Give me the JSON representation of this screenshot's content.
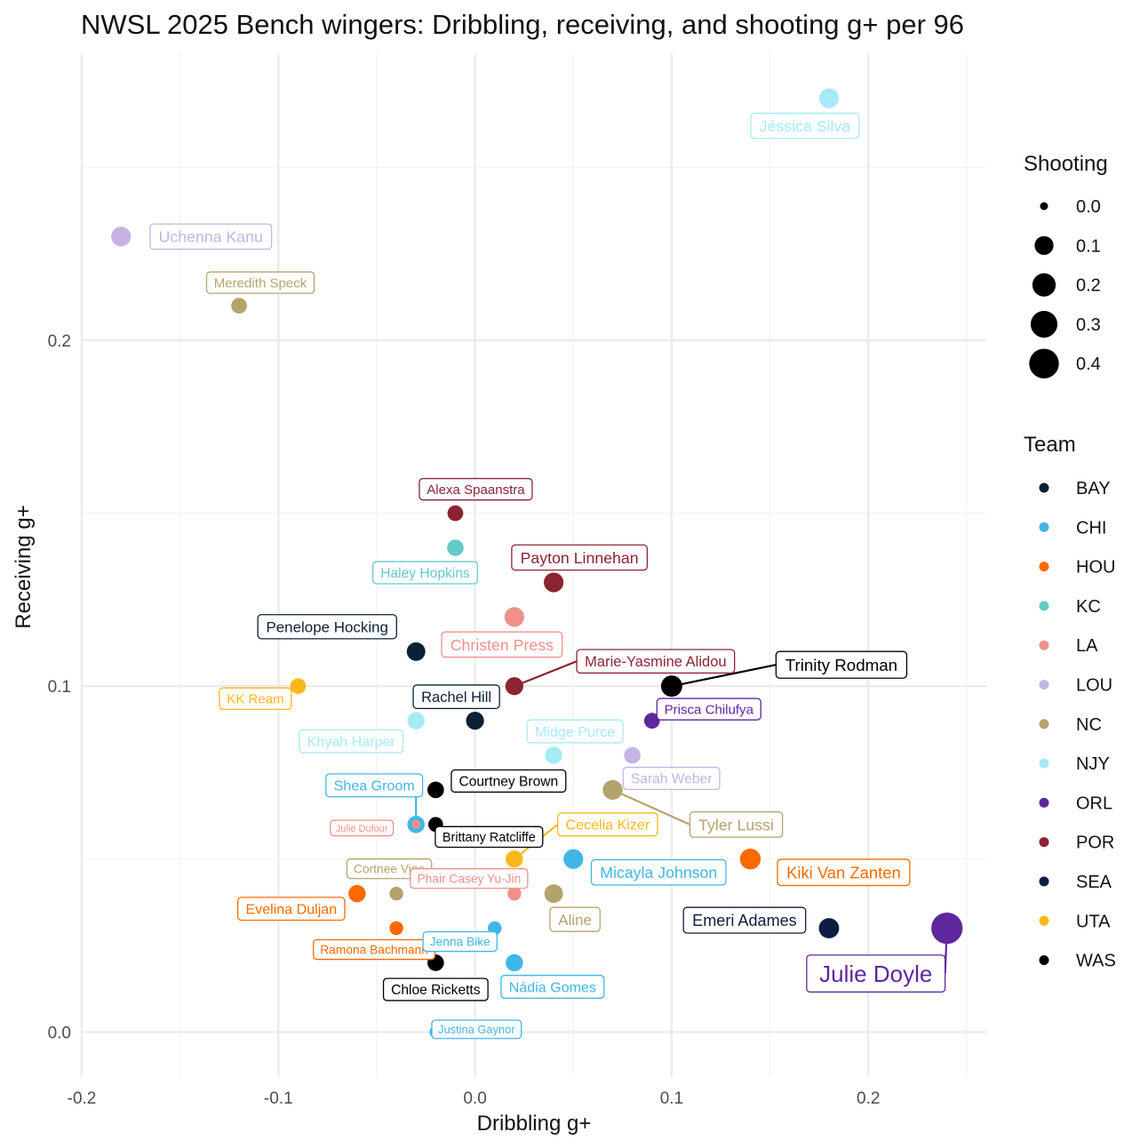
{
  "chart_data": {
    "type": "scatter",
    "title": "NWSL 2025 Bench wingers: Dribbling, receiving, and shooting g+ per 96",
    "xlabel": "Dribbling g+",
    "ylabel": "Receiving g+",
    "xlim": [
      -0.2,
      0.26
    ],
    "ylim": [
      -0.013,
      0.283
    ],
    "x_ticks": [
      -0.2,
      -0.1,
      0.0,
      0.1,
      0.2
    ],
    "x_tick_labels": [
      "-0.2",
      "-0.1",
      "0.0",
      "0.1",
      "0.2"
    ],
    "y_ticks": [
      0.0,
      0.1,
      0.2
    ],
    "y_tick_labels": [
      "0.0",
      "0.1",
      "0.2"
    ],
    "grid": true,
    "legend_position": "right",
    "size_legend": {
      "title": "Shooting",
      "values": [
        0.0,
        0.1,
        0.2,
        0.3,
        0.4
      ],
      "labels": [
        "0.0",
        "0.1",
        "0.2",
        "0.3",
        "0.4"
      ]
    },
    "color_legend": {
      "title": "Team",
      "teams": [
        "BAY",
        "CHI",
        "HOU",
        "KC",
        "LA",
        "LOU",
        "NC",
        "NJY",
        "ORL",
        "POR",
        "SEA",
        "UTA",
        "WAS"
      ]
    },
    "team_colors": {
      "BAY": "#0c2135",
      "CHI": "#41b6e6",
      "HOU": "#ff6900",
      "KC": "#62cbc9",
      "LA": "#f09089",
      "LOU": "#c5b4e3",
      "NC": "#b5a36e",
      "NJY": "#a6eaf5",
      "ORL": "#60269e",
      "POR": "#8b2332",
      "SEA": "#0e1d41",
      "UTA": "#fdb71a",
      "WAS": "#000000"
    },
    "points": [
      {
        "name": "Jéssica Silva",
        "team": "NJY",
        "dribbling": 0.18,
        "receiving": 0.27,
        "shooting": 0.1
      },
      {
        "name": "Uchenna Kanu",
        "team": "LOU",
        "dribbling": -0.18,
        "receiving": 0.23,
        "shooting": 0.1
      },
      {
        "name": "Meredith Speck",
        "team": "NC",
        "dribbling": -0.12,
        "receiving": 0.21,
        "shooting": 0.04
      },
      {
        "name": "Alexa Spaanstra",
        "team": "POR",
        "dribbling": -0.01,
        "receiving": 0.15,
        "shooting": 0.04
      },
      {
        "name": "Haley Hopkins",
        "team": "KC",
        "dribbling": -0.01,
        "receiving": 0.14,
        "shooting": 0.05
      },
      {
        "name": "Payton Linnehan",
        "team": "POR",
        "dribbling": 0.04,
        "receiving": 0.13,
        "shooting": 0.1
      },
      {
        "name": "Christen Press",
        "team": "LA",
        "dribbling": 0.02,
        "receiving": 0.12,
        "shooting": 0.1
      },
      {
        "name": "Penelope Hocking",
        "team": "BAY",
        "dribbling": -0.03,
        "receiving": 0.11,
        "shooting": 0.08
      },
      {
        "name": "Marie-Yasmine Alidou",
        "team": "POR",
        "dribbling": 0.02,
        "receiving": 0.1,
        "shooting": 0.07
      },
      {
        "name": "Trinity Rodman",
        "team": "WAS",
        "dribbling": 0.1,
        "receiving": 0.1,
        "shooting": 0.13
      },
      {
        "name": "KK Ream",
        "team": "UTA",
        "dribbling": -0.09,
        "receiving": 0.1,
        "shooting": 0.04
      },
      {
        "name": "Rachel Hill",
        "team": "BAY",
        "dribbling": 0.0,
        "receiving": 0.09,
        "shooting": 0.07
      },
      {
        "name": "Prisca Chilufya",
        "team": "ORL",
        "dribbling": 0.09,
        "receiving": 0.09,
        "shooting": 0.04
      },
      {
        "name": "Khyah Harper",
        "team": "NJY",
        "dribbling": -0.03,
        "receiving": 0.09,
        "shooting": 0.06
      },
      {
        "name": "Midge Purce",
        "team": "NJY",
        "dribbling": 0.04,
        "receiving": 0.08,
        "shooting": 0.06
      },
      {
        "name": "Sarah Weber",
        "team": "LOU",
        "dribbling": 0.08,
        "receiving": 0.08,
        "shooting": 0.05
      },
      {
        "name": "Courtney Brown",
        "team": "WAS",
        "dribbling": -0.02,
        "receiving": 0.07,
        "shooting": 0.05
      },
      {
        "name": "Tyler Lussi",
        "team": "NC",
        "dribbling": 0.07,
        "receiving": 0.07,
        "shooting": 0.1
      },
      {
        "name": "Shea Groom",
        "team": "CHI",
        "dribbling": -0.03,
        "receiving": 0.06,
        "shooting": 0.06
      },
      {
        "name": "Brittany Ratcliffe",
        "team": "WAS",
        "dribbling": -0.02,
        "receiving": 0.06,
        "shooting": 0.03
      },
      {
        "name": "Julie Dufour",
        "team": "LA",
        "dribbling": -0.03,
        "receiving": 0.06,
        "shooting": 0.0
      },
      {
        "name": "Cecelia Kizer",
        "team": "UTA",
        "dribbling": 0.02,
        "receiving": 0.05,
        "shooting": 0.06
      },
      {
        "name": "Micayla Johnson",
        "team": "CHI",
        "dribbling": 0.05,
        "receiving": 0.05,
        "shooting": 0.1
      },
      {
        "name": "Kiki Van Zanten",
        "team": "HOU",
        "dribbling": 0.14,
        "receiving": 0.05,
        "shooting": 0.12
      },
      {
        "name": "Cortnee Vine",
        "team": "NC",
        "dribbling": -0.04,
        "receiving": 0.04,
        "shooting": 0.02
      },
      {
        "name": "Phair Casey Yu-Jin",
        "team": "LA",
        "dribbling": 0.02,
        "receiving": 0.04,
        "shooting": 0.02
      },
      {
        "name": "Evelina Duljan",
        "team": "HOU",
        "dribbling": -0.06,
        "receiving": 0.04,
        "shooting": 0.06
      },
      {
        "name": "Aline",
        "team": "NC",
        "dribbling": 0.04,
        "receiving": 0.04,
        "shooting": 0.08
      },
      {
        "name": "Emeri Adames",
        "team": "SEA",
        "dribbling": 0.18,
        "receiving": 0.03,
        "shooting": 0.11
      },
      {
        "name": "Julie Doyle",
        "team": "ORL",
        "dribbling": 0.24,
        "receiving": 0.03,
        "shooting": 0.43
      },
      {
        "name": "Ramona Bachmann",
        "team": "HOU",
        "dribbling": -0.04,
        "receiving": 0.03,
        "shooting": 0.02
      },
      {
        "name": "Jenna Bike",
        "team": "CHI",
        "dribbling": 0.01,
        "receiving": 0.03,
        "shooting": 0.02
      },
      {
        "name": "Chloe Ricketts",
        "team": "WAS",
        "dribbling": -0.02,
        "receiving": 0.02,
        "shooting": 0.05
      },
      {
        "name": "Nádia Gomes",
        "team": "CHI",
        "dribbling": 0.02,
        "receiving": 0.02,
        "shooting": 0.06
      },
      {
        "name": "Justina Gaynor",
        "team": "CHI",
        "dribbling": -0.02,
        "receiving": 0.0,
        "shooting": 0.01
      }
    ]
  }
}
